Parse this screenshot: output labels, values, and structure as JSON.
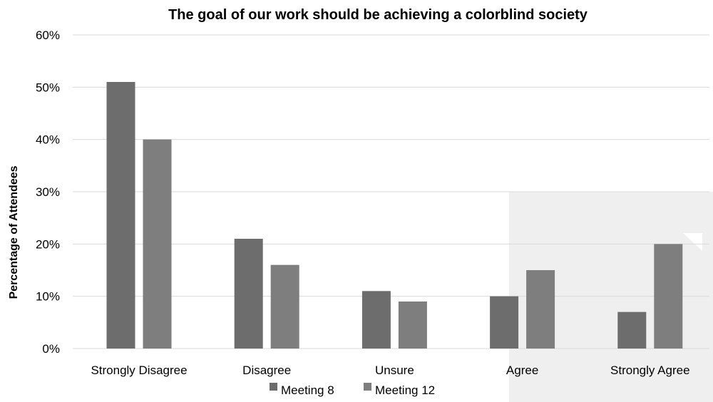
{
  "chart_data": {
    "type": "bar",
    "title": "The goal of our work should be achieving a colorblind society",
    "xlabel": "",
    "ylabel": "Percentage of Attendees",
    "categories": [
      "Strongly Disagree",
      "Disagree",
      "Unsure",
      "Agree",
      "Strongly Agree"
    ],
    "series": [
      {
        "name": "Meeting 8",
        "values": [
          51,
          21,
          11,
          10,
          7
        ],
        "color": "#6d6d6d"
      },
      {
        "name": "Meeting 12",
        "values": [
          40,
          16,
          9,
          15,
          20
        ],
        "color": "#7e7e7e"
      }
    ],
    "ylim": [
      0,
      60
    ],
    "yticks": [
      0,
      10,
      20,
      30,
      40,
      50,
      60
    ],
    "ytick_format": "{v}%",
    "grid": true,
    "legend_position": "bottom",
    "watermark_color": "#efefef"
  }
}
